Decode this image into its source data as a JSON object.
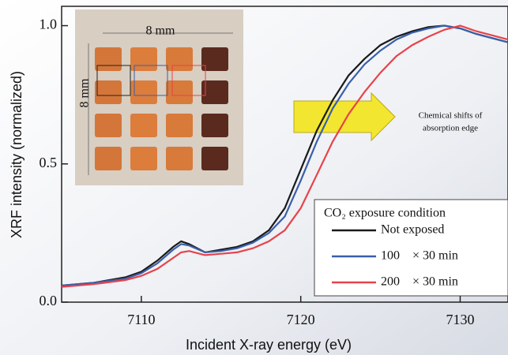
{
  "chart_data": {
    "type": "line",
    "xlabel": "Incident X-ray energy (eV)",
    "ylabel": "XRF intensity (normalized)",
    "x": [
      7105,
      7107,
      7109,
      7110,
      7111,
      7112,
      7112.5,
      7113,
      7114,
      7115,
      7116,
      7117,
      7118,
      7119,
      7120,
      7121,
      7122,
      7123,
      7124,
      7125,
      7126,
      7127,
      7128,
      7129,
      7130,
      7131,
      7133
    ],
    "series": [
      {
        "name": "Not exposed",
        "color": "#1a1a1a",
        "values": [
          0.06,
          0.07,
          0.09,
          0.11,
          0.15,
          0.2,
          0.22,
          0.21,
          0.18,
          0.19,
          0.2,
          0.22,
          0.26,
          0.34,
          0.48,
          0.62,
          0.73,
          0.82,
          0.88,
          0.93,
          0.96,
          0.98,
          0.995,
          1.0,
          0.99,
          0.97,
          0.94
        ]
      },
      {
        "name": "100    × 30 min",
        "color": "#3a5faa",
        "values": [
          0.06,
          0.07,
          0.085,
          0.105,
          0.14,
          0.19,
          0.21,
          0.205,
          0.18,
          0.185,
          0.195,
          0.215,
          0.25,
          0.31,
          0.44,
          0.58,
          0.7,
          0.79,
          0.86,
          0.91,
          0.95,
          0.975,
          0.99,
          1.0,
          0.99,
          0.97,
          0.94
        ]
      },
      {
        "name": "200    × 30 min",
        "color": "#e8424a",
        "values": [
          0.055,
          0.065,
          0.08,
          0.095,
          0.12,
          0.16,
          0.18,
          0.185,
          0.17,
          0.175,
          0.18,
          0.195,
          0.22,
          0.26,
          0.34,
          0.46,
          0.58,
          0.68,
          0.76,
          0.83,
          0.89,
          0.93,
          0.96,
          0.985,
          1.0,
          0.98,
          0.95
        ]
      }
    ],
    "xlim": [
      7105,
      7133
    ],
    "xticks": [
      7110,
      7120,
      7130
    ],
    "ylim": [
      0,
      1.07
    ],
    "yticks": [
      {
        "value": 0,
        "label": "0.0"
      },
      0.5,
      {
        "value": 1,
        "label": "1.0"
      }
    ],
    "legend_title": "CO₂ exposure condition",
    "annotation": [
      "Chemical shifts of",
      "absorption edge"
    ],
    "inset_labels": [
      "8 mm",
      "8 mm"
    ]
  }
}
